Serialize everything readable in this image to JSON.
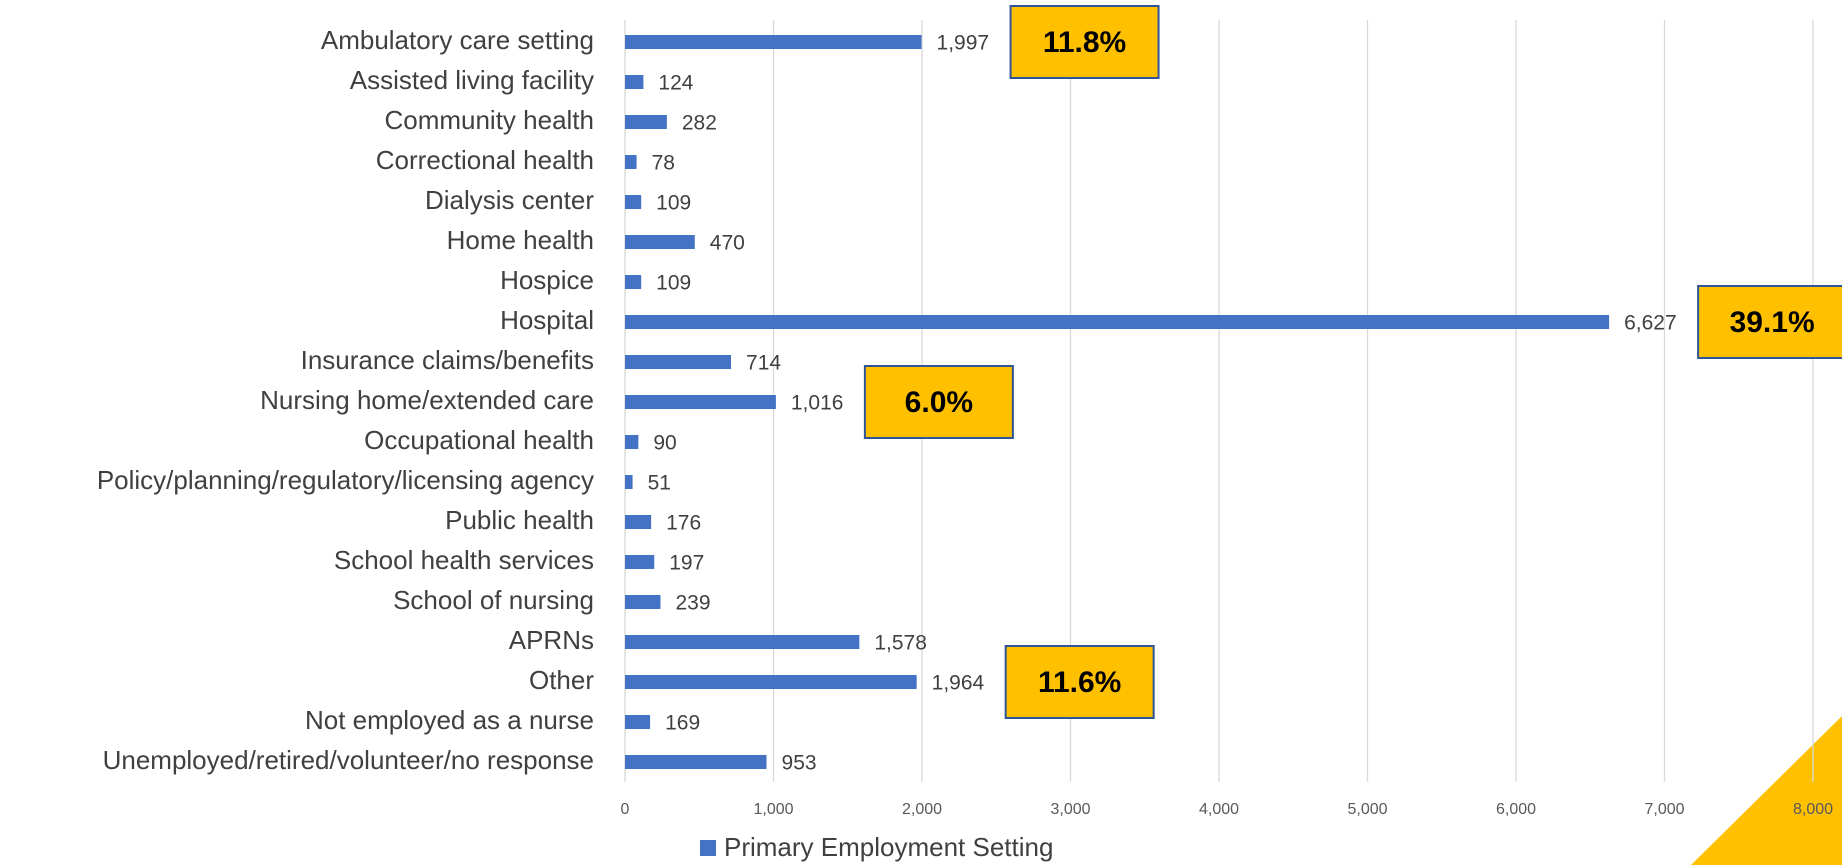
{
  "chart_data": {
    "type": "barh",
    "categories": [
      "Ambulatory care setting",
      "Assisted living facility",
      "Community health",
      "Correctional health",
      "Dialysis center",
      "Home health",
      "Hospice",
      "Hospital",
      "Insurance claims/benefits",
      "Nursing home/extended care",
      "Occupational health",
      "Policy/planning/regulatory/licensing agency",
      "Public health",
      "School health services",
      "School of nursing",
      "APRNs",
      "Other",
      "Not employed as a nurse",
      "Unemployed/retired/volunteer/no response"
    ],
    "series": [
      {
        "name": "Primary Employment Setting",
        "color": "#4472c4",
        "values": [
          1997,
          124,
          282,
          78,
          109,
          470,
          109,
          6627,
          714,
          1016,
          90,
          51,
          176,
          197,
          239,
          1578,
          1964,
          169,
          953
        ],
        "value_labels": [
          "1,997",
          "124",
          "282",
          "78",
          "109",
          "470",
          "109",
          "6,627",
          "714",
          "1,016",
          "90",
          "51",
          "176",
          "197",
          "239",
          "1,578",
          "1,964",
          "169",
          "953"
        ]
      }
    ],
    "xlim": [
      0,
      8000
    ],
    "xticks": [
      0,
      {
        "value": 1000,
        "label": "1,000"
      },
      {
        "value": 2000,
        "label": "2,000"
      },
      {
        "value": 3000,
        "label": "3,000"
      },
      {
        "value": 4000,
        "label": "4,000"
      },
      {
        "value": 5000,
        "label": "5,000"
      },
      {
        "value": 6000,
        "label": "6,000"
      },
      {
        "value": 7000,
        "label": "7,000"
      },
      {
        "value": 8000,
        "label": "8,000"
      }
    ],
    "grid": true,
    "legend": "bottom",
    "annotations": [
      {
        "text": "11.8%",
        "category": "Ambulatory care setting"
      },
      {
        "text": "39.1%",
        "category": "Hospital"
      },
      {
        "text": "6.0%",
        "category": "Nursing home/extended care"
      },
      {
        "text": "11.6%",
        "category": "Other"
      }
    ]
  }
}
